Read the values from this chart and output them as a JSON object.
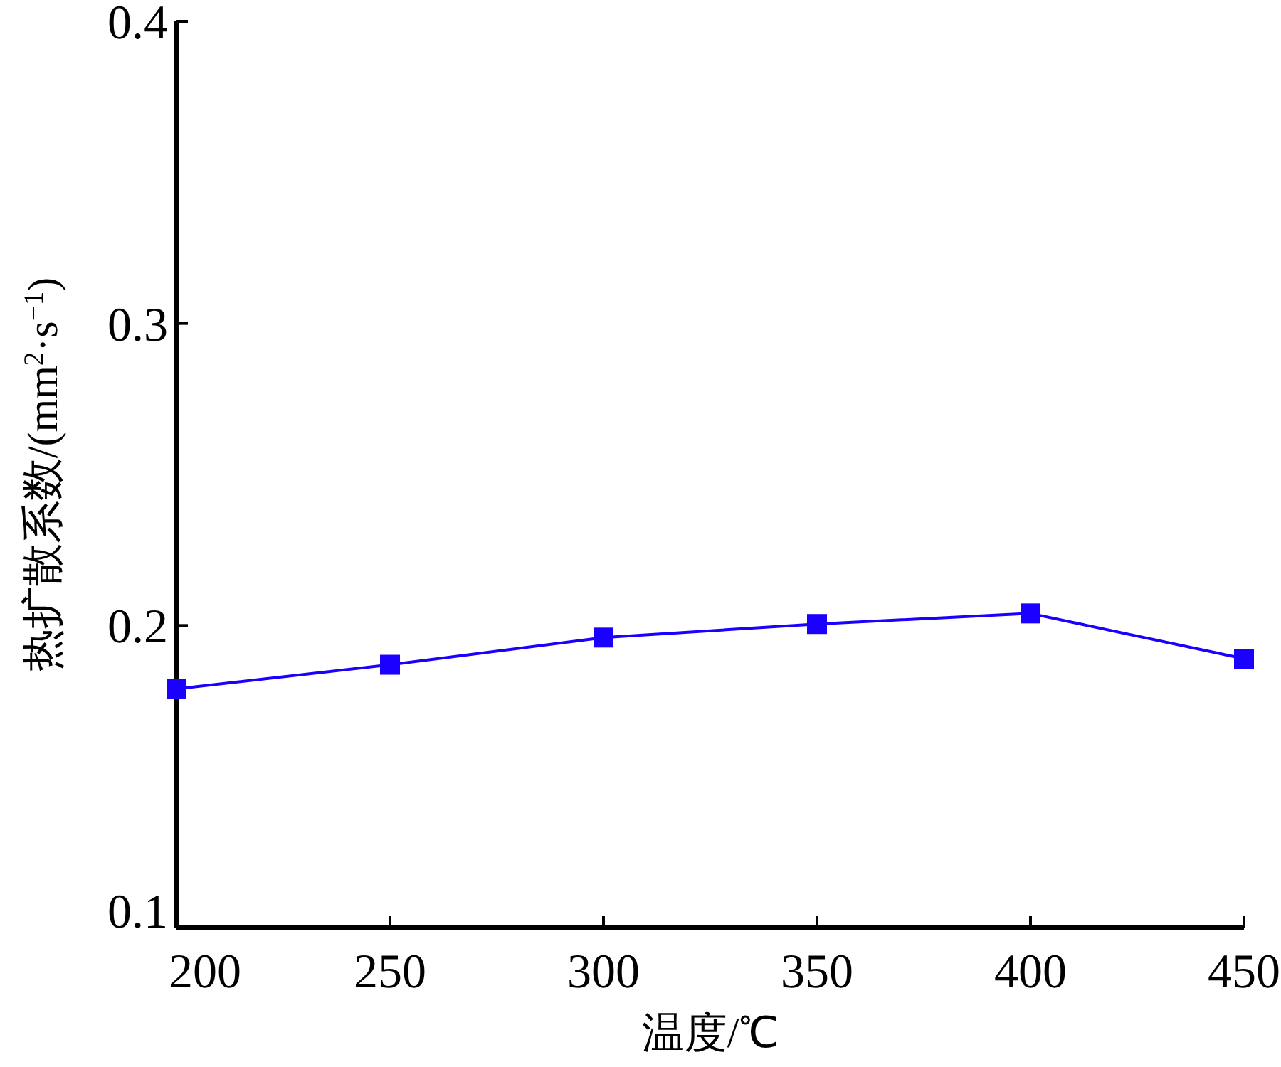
{
  "chart_data": {
    "type": "line",
    "xlabel": "温度/℃",
    "ylabel": "热扩散系数/(mm$^{2}$·s$^{−1}$)",
    "x": [
      200,
      250,
      300,
      350,
      400,
      450
    ],
    "series": [
      {
        "color": "#1a00ff",
        "values": [
          0.179,
          0.187,
          0.196,
          0.2005,
          0.204,
          0.189
        ]
      }
    ],
    "xlim": [
      200,
      450
    ],
    "xticks": [
      200,
      250,
      300,
      350,
      400,
      450
    ],
    "ylim": [
      0.1,
      0.4
    ],
    "yticks": [
      0.1,
      0.2,
      0.3,
      0.4
    ],
    "marker": "square",
    "line_style": "solid",
    "grid": false
  }
}
